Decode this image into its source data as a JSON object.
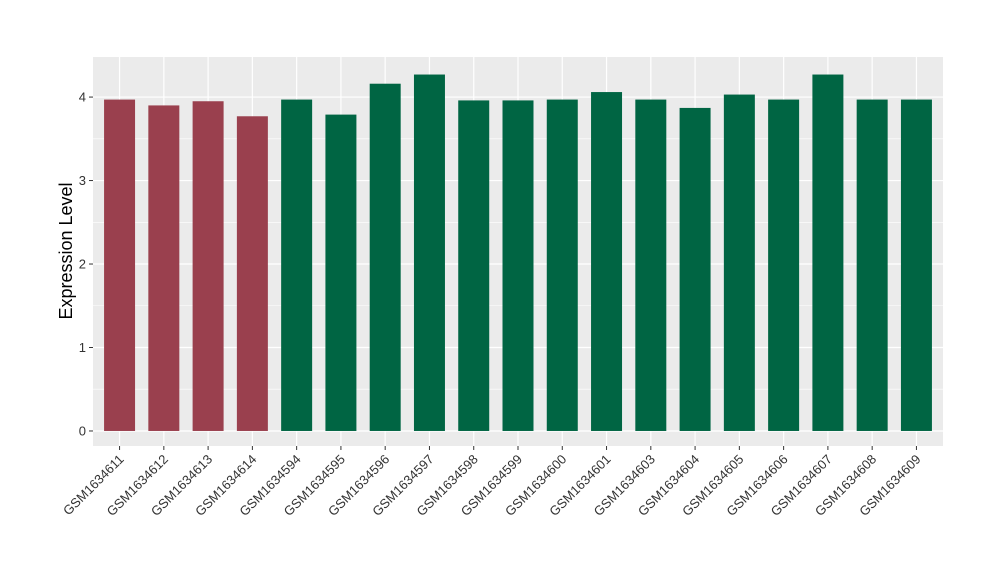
{
  "chart_data": {
    "type": "bar",
    "ylabel": "Expression Level",
    "xlabel": "",
    "ylim": [
      -0.18,
      4.48
    ],
    "yticks": [
      0,
      1,
      2,
      3,
      4
    ],
    "grid": true,
    "categories": [
      "GSM1634611",
      "GSM1634612",
      "GSM1634613",
      "GSM1634614",
      "GSM1634594",
      "GSM1634595",
      "GSM1634596",
      "GSM1634597",
      "GSM1634598",
      "GSM1634599",
      "GSM1634600",
      "GSM1634601",
      "GSM1634603",
      "GSM1634604",
      "GSM1634605",
      "GSM1634606",
      "GSM1634607",
      "GSM1634608",
      "GSM1634609"
    ],
    "values": [
      3.97,
      3.9,
      3.95,
      3.77,
      3.97,
      3.79,
      4.16,
      4.27,
      3.96,
      3.96,
      3.97,
      4.06,
      3.97,
      3.87,
      4.03,
      3.97,
      4.27,
      3.97,
      3.97
    ],
    "groups": [
      "a",
      "a",
      "a",
      "a",
      "b",
      "b",
      "b",
      "b",
      "b",
      "b",
      "b",
      "b",
      "b",
      "b",
      "b",
      "b",
      "b",
      "b",
      "b"
    ],
    "colors": {
      "a": "#9A404E",
      "b": "#006543"
    },
    "panel_bg": "#EBEBEB",
    "grid_color": "#FFFFFF"
  }
}
